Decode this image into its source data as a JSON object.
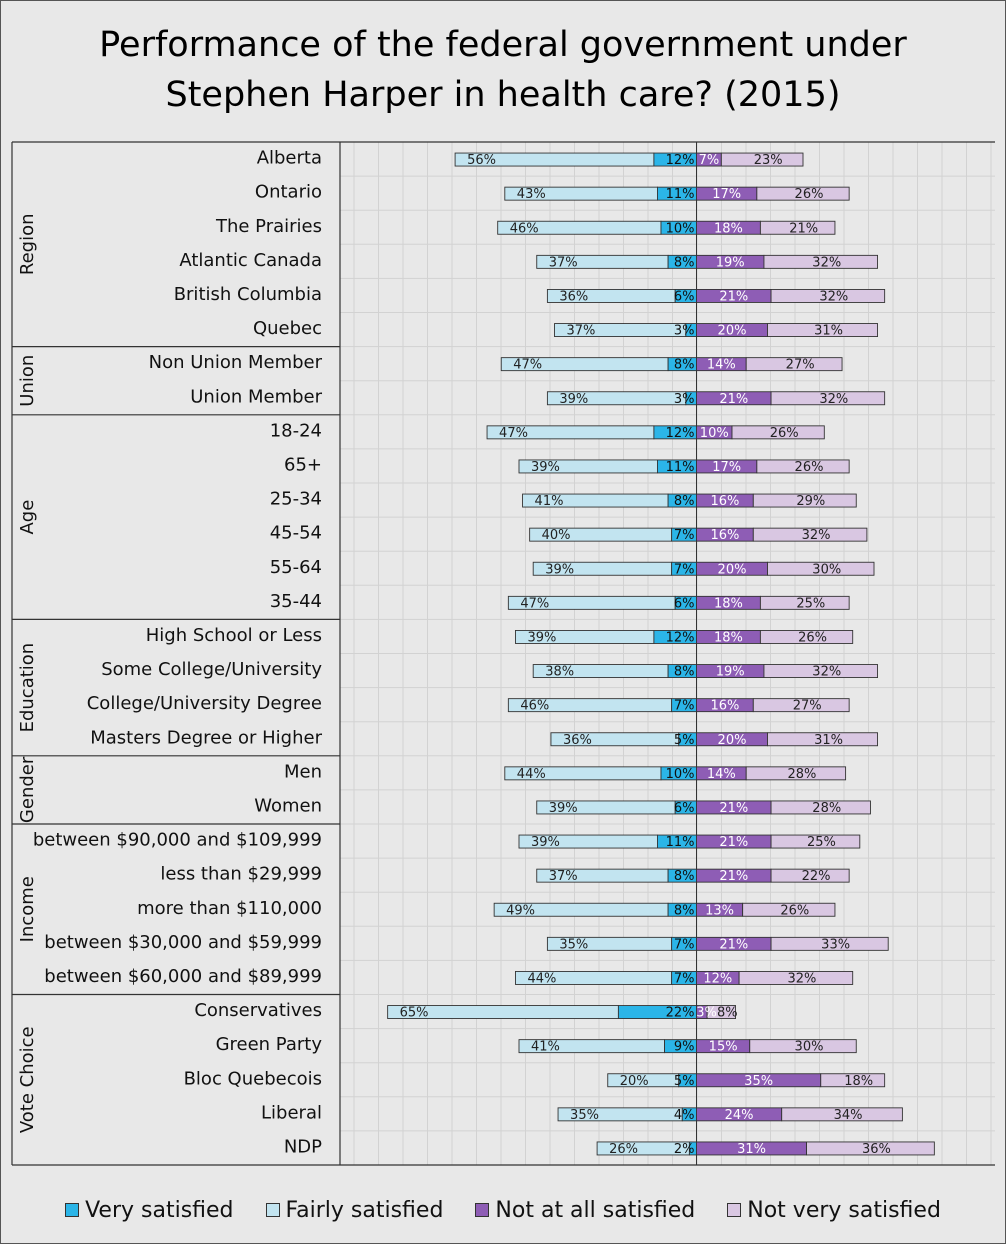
{
  "title_lines": [
    "Performance of the federal government under",
    "Stephen Harper in health care? (2015)"
  ],
  "chart_data": {
    "type": "bar",
    "orientation": "horizontal-diverging",
    "title": "Performance of the federal government under Stephen Harper in health care? (2015)",
    "xlim": [
      -86,
      67
    ],
    "series": [
      {
        "name": "Very satisfied",
        "side": "left",
        "color": "#2bb5e8"
      },
      {
        "name": "Fairly satisfied",
        "side": "left",
        "color": "#c2e4f0"
      },
      {
        "name": "Not at all satisfied",
        "side": "right",
        "color": "#8e5db5"
      },
      {
        "name": "Not very satisfied",
        "side": "right",
        "color": "#d9c7e2"
      }
    ],
    "groups": [
      {
        "name": "Region",
        "rows": [
          {
            "label": "Alberta",
            "values": [
              12,
              56,
              7,
              23
            ]
          },
          {
            "label": "Ontario",
            "values": [
              11,
              43,
              17,
              26
            ]
          },
          {
            "label": "The Prairies",
            "values": [
              10,
              46,
              18,
              21
            ]
          },
          {
            "label": "Atlantic Canada",
            "values": [
              8,
              37,
              19,
              32
            ]
          },
          {
            "label": "British Columbia",
            "values": [
              6,
              36,
              21,
              32
            ]
          },
          {
            "label": "Quebec",
            "values": [
              3,
              37,
              20,
              31
            ]
          }
        ]
      },
      {
        "name": "Union",
        "rows": [
          {
            "label": "Non Union Member",
            "values": [
              8,
              47,
              14,
              27
            ]
          },
          {
            "label": "Union Member",
            "values": [
              3,
              39,
              21,
              32
            ]
          }
        ]
      },
      {
        "name": "Age",
        "rows": [
          {
            "label": "18-24",
            "values": [
              12,
              47,
              10,
              26
            ]
          },
          {
            "label": "65+",
            "values": [
              11,
              39,
              17,
              26
            ]
          },
          {
            "label": "25-34",
            "values": [
              8,
              41,
              16,
              29
            ]
          },
          {
            "label": "45-54",
            "values": [
              7,
              40,
              16,
              32
            ]
          },
          {
            "label": "55-64",
            "values": [
              7,
              39,
              20,
              30
            ]
          },
          {
            "label": "35-44",
            "values": [
              6,
              47,
              18,
              25
            ]
          }
        ]
      },
      {
        "name": "Education",
        "rows": [
          {
            "label": "High School or Less",
            "values": [
              12,
              39,
              18,
              26
            ]
          },
          {
            "label": "Some College/University",
            "values": [
              8,
              38,
              19,
              32
            ]
          },
          {
            "label": "College/University Degree",
            "values": [
              7,
              46,
              16,
              27
            ]
          },
          {
            "label": "Masters Degree or Higher",
            "values": [
              5,
              36,
              20,
              31
            ]
          }
        ]
      },
      {
        "name": "Gender",
        "rows": [
          {
            "label": "Men",
            "values": [
              10,
              44,
              14,
              28
            ]
          },
          {
            "label": "Women",
            "values": [
              6,
              39,
              21,
              28
            ]
          }
        ]
      },
      {
        "name": "Income",
        "rows": [
          {
            "label": "between $90,000 and $109,999",
            "values": [
              11,
              39,
              21,
              25
            ]
          },
          {
            "label": "less than $29,999",
            "values": [
              8,
              37,
              21,
              22
            ]
          },
          {
            "label": "more than $110,000",
            "values": [
              8,
              49,
              13,
              26
            ]
          },
          {
            "label": "between $30,000 and $59,999",
            "values": [
              7,
              35,
              21,
              33
            ]
          },
          {
            "label": "between $60,000 and $89,999",
            "values": [
              7,
              44,
              12,
              32
            ]
          }
        ]
      },
      {
        "name": "Vote Choice",
        "rows": [
          {
            "label": "Conservatives",
            "values": [
              22,
              65,
              3,
              8
            ]
          },
          {
            "label": "Green Party",
            "values": [
              9,
              41,
              15,
              30
            ]
          },
          {
            "label": "Bloc Quebecois",
            "values": [
              5,
              20,
              35,
              18
            ]
          },
          {
            "label": "Liberal",
            "values": [
              4,
              35,
              24,
              34
            ]
          },
          {
            "label": "NDP",
            "values": [
              2,
              26,
              31,
              36
            ]
          }
        ]
      }
    ]
  },
  "legend": [
    {
      "label": "Very satisfied",
      "color": "#2bb5e8"
    },
    {
      "label": "Fairly satisfied",
      "color": "#c2e4f0"
    },
    {
      "label": "Not at all satisfied",
      "color": "#8e5db5"
    },
    {
      "label": "Not very satisfied",
      "color": "#d9c7e2"
    }
  ]
}
